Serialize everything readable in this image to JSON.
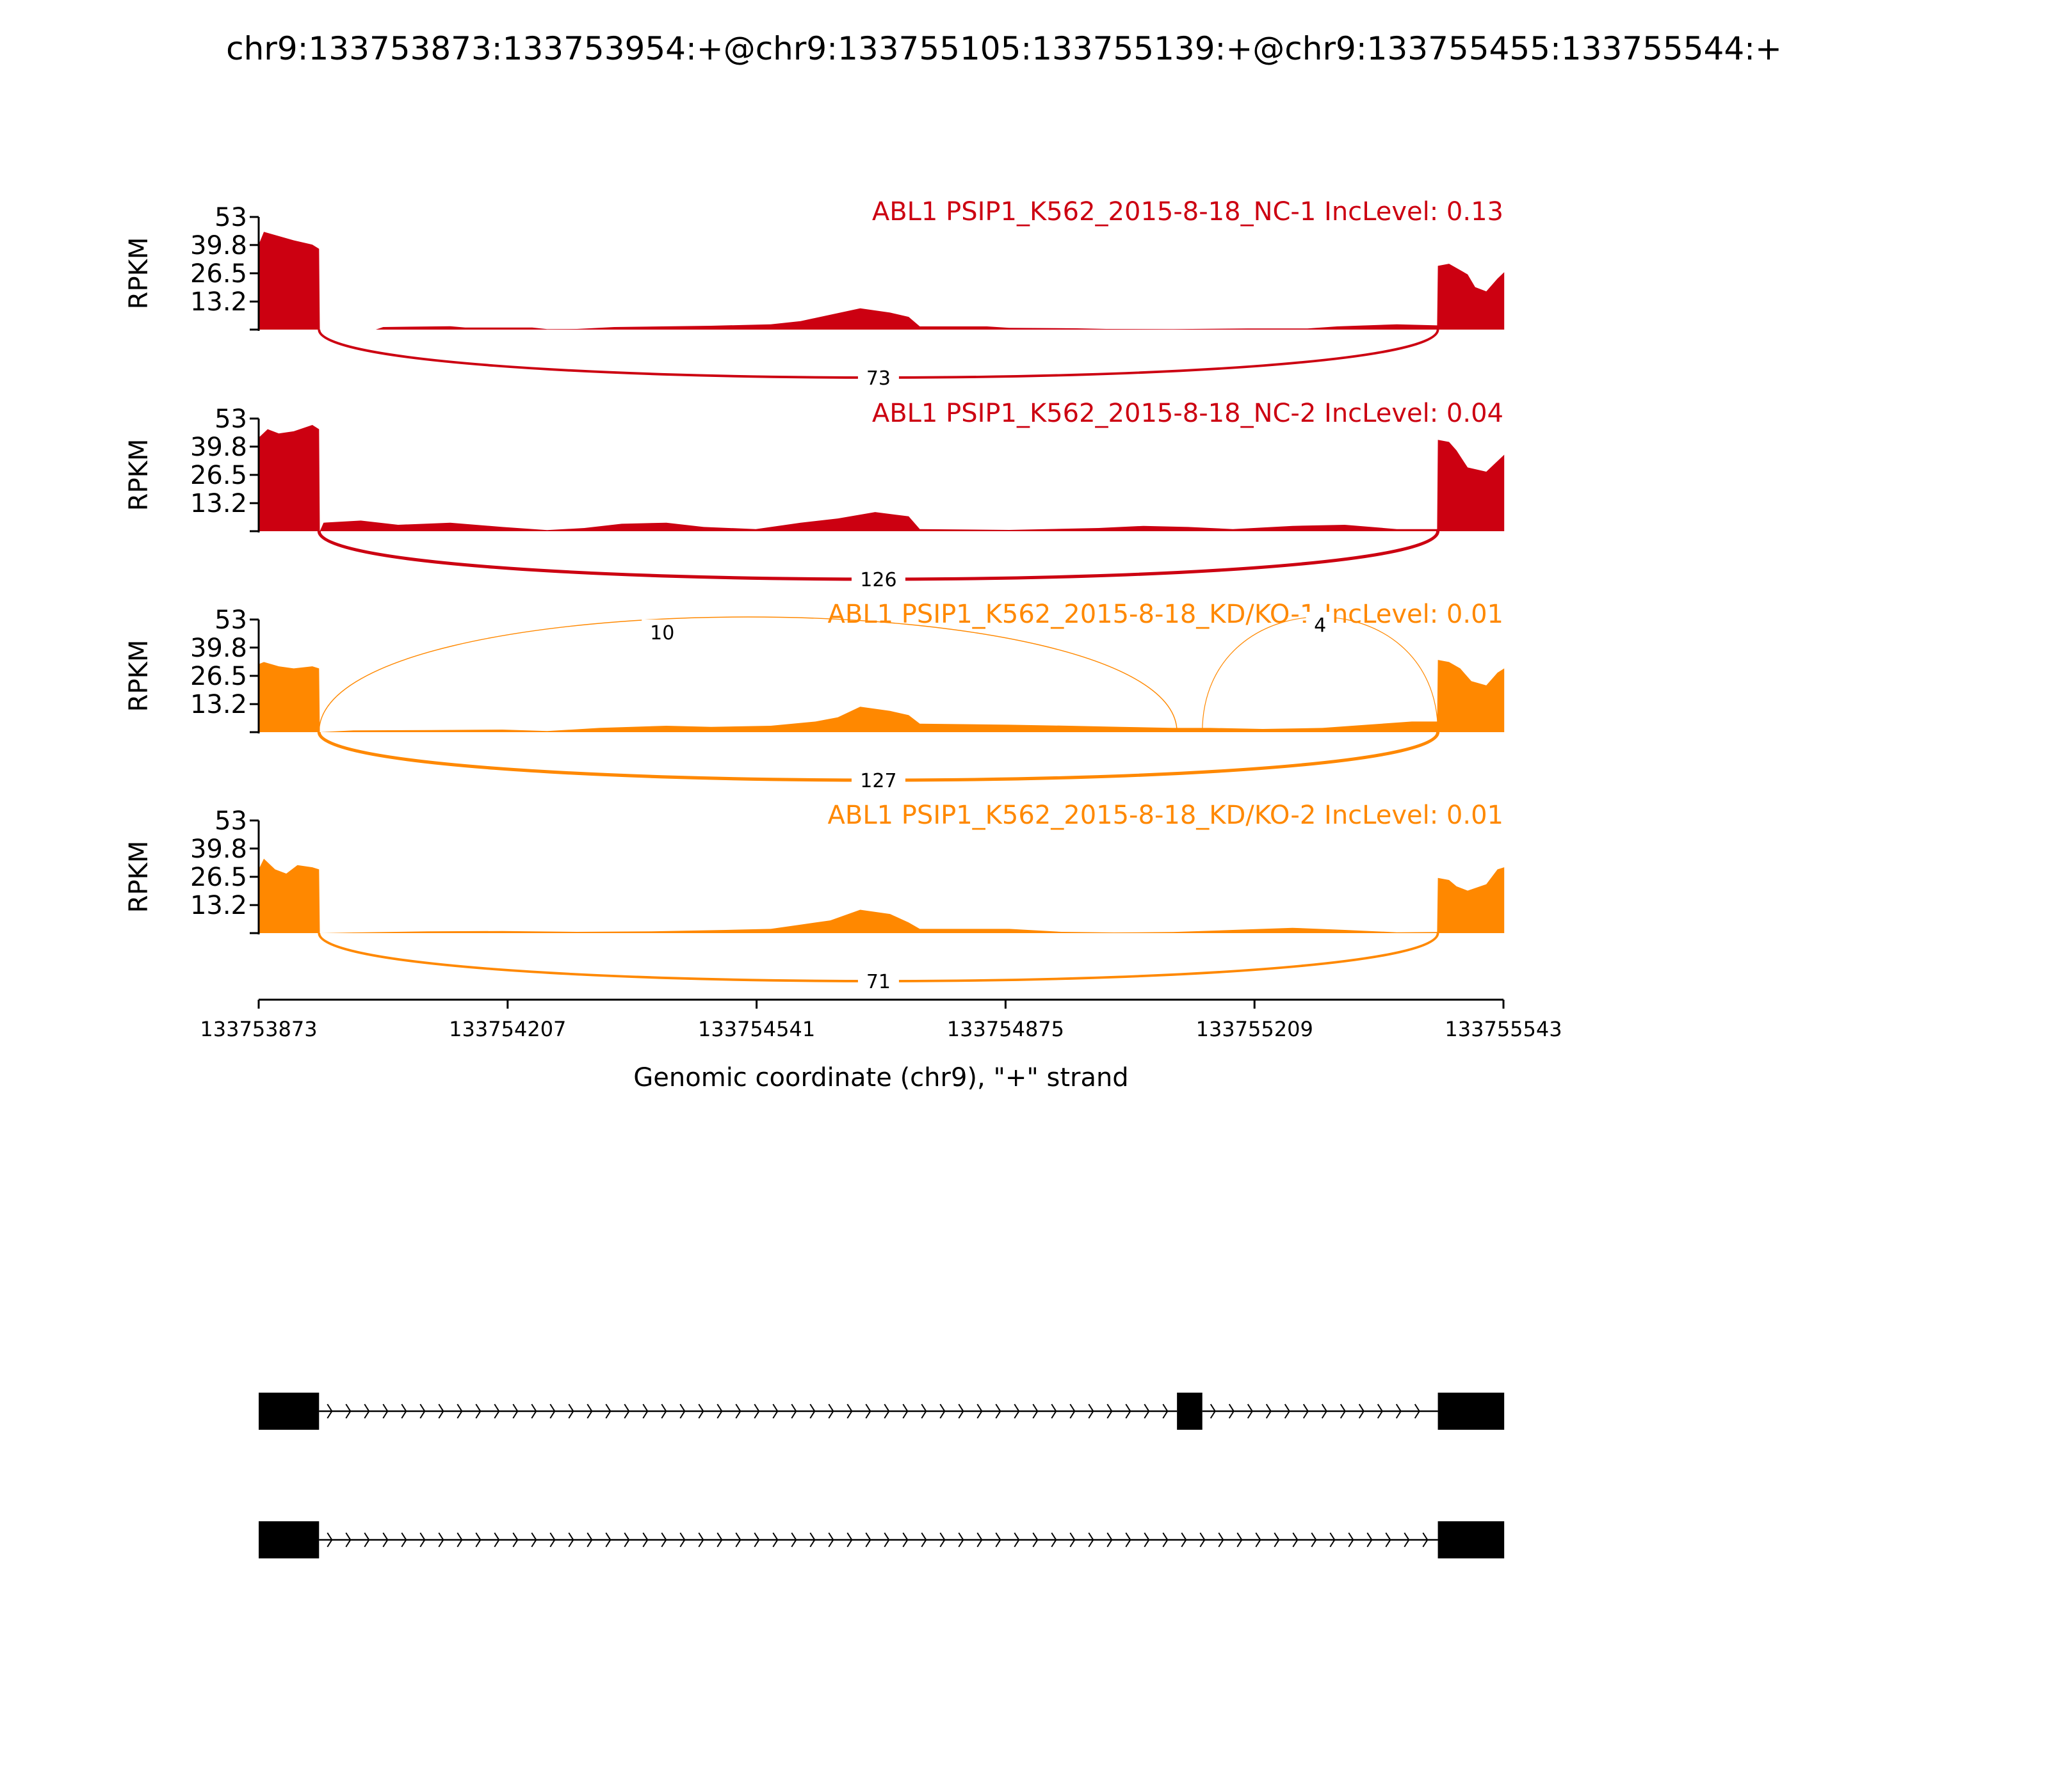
{
  "chart_data": {
    "type": "sashimi",
    "title": "chr9:133753873:133753954:+@chr9:133755105:133755139:+@chr9:133755455:133755544:+",
    "xlabel": "Genomic coordinate (chr9), \"+\" strand",
    "ylabel": "RPKM",
    "xlim": [
      133753873,
      133755543
    ],
    "x_ticks": [
      "133753873",
      "133754207",
      "133754541",
      "133754875",
      "133755209",
      "133755543"
    ],
    "ylim": [
      0,
      53
    ],
    "y_ticks": [
      "13.2",
      "26.5",
      "39.8",
      "53"
    ],
    "exons": [
      {
        "start": 133753873,
        "end": 133753954
      },
      {
        "start": 133755105,
        "end": 133755139
      },
      {
        "start": 133755455,
        "end": 133755544
      }
    ],
    "series": [
      {
        "name": "ABL1 PSIP1_K562_2015-8-18_NC-1 IncLevel: 0.13",
        "color": "#cc0011",
        "coverage": [
          [
            133753873,
            40
          ],
          [
            133753880,
            46
          ],
          [
            133753900,
            44
          ],
          [
            133753920,
            42
          ],
          [
            133753945,
            40
          ],
          [
            133753954,
            38
          ],
          [
            133753955,
            0
          ],
          [
            133754030,
            0
          ],
          [
            133754040,
            1.2
          ],
          [
            133754130,
            1.6
          ],
          [
            133754150,
            1
          ],
          [
            133754240,
            1
          ],
          [
            133754260,
            0.2
          ],
          [
            133754300,
            0.3
          ],
          [
            133754350,
            1.2
          ],
          [
            133754480,
            1.8
          ],
          [
            133754560,
            2.5
          ],
          [
            133754600,
            4
          ],
          [
            133754640,
            7
          ],
          [
            133754680,
            10
          ],
          [
            133754720,
            8
          ],
          [
            133754745,
            6
          ],
          [
            133754760,
            1.5
          ],
          [
            133754850,
            1.5
          ],
          [
            133754880,
            0.8
          ],
          [
            133754970,
            0.6
          ],
          [
            133755010,
            0.3
          ],
          [
            133755100,
            0.2
          ],
          [
            133755200,
            0.5
          ],
          [
            133755280,
            0.5
          ],
          [
            133755320,
            1.5
          ],
          [
            133755400,
            2.5
          ],
          [
            133755454,
            2
          ],
          [
            133755455,
            30
          ],
          [
            133755470,
            31
          ],
          [
            133755480,
            29
          ],
          [
            133755495,
            26
          ],
          [
            133755505,
            20
          ],
          [
            133755520,
            18
          ],
          [
            133755535,
            24
          ],
          [
            133755544,
            27
          ]
        ],
        "junctions": [
          {
            "from": 133753954,
            "to": 133755455,
            "count": "73",
            "side": "below"
          }
        ]
      },
      {
        "name": "ABL1 PSIP1_K562_2015-8-18_NC-2 IncLevel: 0.04",
        "color": "#cc0011",
        "coverage": [
          [
            133753873,
            44
          ],
          [
            133753885,
            48
          ],
          [
            133753900,
            46
          ],
          [
            133753920,
            47
          ],
          [
            133753945,
            50
          ],
          [
            133753954,
            48
          ],
          [
            133753955,
            0
          ],
          [
            133753960,
            4
          ],
          [
            133754010,
            5
          ],
          [
            133754060,
            3
          ],
          [
            133754130,
            4
          ],
          [
            133754200,
            2
          ],
          [
            133754260,
            0.5
          ],
          [
            133754310,
            1.5
          ],
          [
            133754360,
            3.5
          ],
          [
            133754420,
            4
          ],
          [
            133754470,
            2
          ],
          [
            133754540,
            1
          ],
          [
            133754600,
            4
          ],
          [
            133754650,
            6
          ],
          [
            133754700,
            9
          ],
          [
            133754745,
            7
          ],
          [
            133754760,
            1
          ],
          [
            133754880,
            0.6
          ],
          [
            133755000,
            1.5
          ],
          [
            133755060,
            2.5
          ],
          [
            133755120,
            2
          ],
          [
            133755180,
            1
          ],
          [
            133755260,
            2.5
          ],
          [
            133755330,
            3
          ],
          [
            133755400,
            1
          ],
          [
            133755454,
            1
          ],
          [
            133755455,
            43
          ],
          [
            133755470,
            42
          ],
          [
            133755480,
            38
          ],
          [
            133755495,
            30
          ],
          [
            133755520,
            28
          ],
          [
            133755535,
            33
          ],
          [
            133755544,
            36
          ]
        ],
        "junctions": [
          {
            "from": 133753954,
            "to": 133755455,
            "count": "126",
            "side": "below"
          }
        ]
      },
      {
        "name": "ABL1 PSIP1_K562_2015-8-18_KD/KO-1 IncLevel: 0.01",
        "color": "#ff8800",
        "coverage": [
          [
            133753873,
            32
          ],
          [
            133753880,
            33
          ],
          [
            133753900,
            31
          ],
          [
            133753920,
            30
          ],
          [
            133753945,
            31
          ],
          [
            133753954,
            30
          ],
          [
            133753955,
            0
          ],
          [
            133754000,
            0.8
          ],
          [
            133754100,
            1
          ],
          [
            133754200,
            1.2
          ],
          [
            133754260,
            0.5
          ],
          [
            133754330,
            2
          ],
          [
            133754420,
            3
          ],
          [
            133754480,
            2.5
          ],
          [
            133754560,
            3
          ],
          [
            133754620,
            5
          ],
          [
            133754650,
            7
          ],
          [
            133754680,
            12
          ],
          [
            133754720,
            10
          ],
          [
            133754745,
            8
          ],
          [
            133754760,
            4
          ],
          [
            133754880,
            3.5
          ],
          [
            133754960,
            3
          ],
          [
            133755030,
            2.5
          ],
          [
            133755100,
            2
          ],
          [
            133755150,
            2
          ],
          [
            133755220,
            1.5
          ],
          [
            133755300,
            2
          ],
          [
            133755360,
            3.5
          ],
          [
            133755420,
            5
          ],
          [
            133755454,
            5
          ],
          [
            133755455,
            34
          ],
          [
            133755470,
            33
          ],
          [
            133755485,
            30
          ],
          [
            133755500,
            24
          ],
          [
            133755520,
            22
          ],
          [
            133755535,
            28
          ],
          [
            133755544,
            30
          ]
        ],
        "junctions": [
          {
            "from": 133753954,
            "to": 133755105,
            "count": "10",
            "side": "above"
          },
          {
            "from": 133755139,
            "to": 133755455,
            "count": "4",
            "side": "above"
          },
          {
            "from": 133753954,
            "to": 133755455,
            "count": "127",
            "side": "below"
          }
        ]
      },
      {
        "name": "ABL1 PSIP1_K562_2015-8-18_KD/KO-2 IncLevel: 0.01",
        "color": "#ff8800",
        "coverage": [
          [
            133753873,
            30
          ],
          [
            133753880,
            35
          ],
          [
            133753895,
            30
          ],
          [
            133753910,
            28
          ],
          [
            133753925,
            32
          ],
          [
            133753945,
            31
          ],
          [
            133753954,
            30
          ],
          [
            133753955,
            0
          ],
          [
            133754000,
            0.3
          ],
          [
            133754100,
            0.8
          ],
          [
            133754200,
            1
          ],
          [
            133754300,
            0.6
          ],
          [
            133754400,
            0.8
          ],
          [
            133754500,
            1.5
          ],
          [
            133754560,
            2
          ],
          [
            133754600,
            4
          ],
          [
            133754640,
            6
          ],
          [
            133754680,
            11
          ],
          [
            133754720,
            9
          ],
          [
            133754745,
            5
          ],
          [
            133754760,
            2
          ],
          [
            133754880,
            2
          ],
          [
            133754950,
            0.6
          ],
          [
            133755020,
            0.3
          ],
          [
            133755100,
            0.5
          ],
          [
            133755180,
            1.5
          ],
          [
            133755260,
            2.5
          ],
          [
            133755330,
            1.5
          ],
          [
            133755400,
            0.4
          ],
          [
            133755454,
            0.5
          ],
          [
            133755455,
            26
          ],
          [
            133755470,
            25
          ],
          [
            133755480,
            22
          ],
          [
            133755495,
            20
          ],
          [
            133755520,
            23
          ],
          [
            133755535,
            30
          ],
          [
            133755544,
            31
          ]
        ],
        "junctions": [
          {
            "from": 133753954,
            "to": 133755455,
            "count": "71",
            "side": "below"
          }
        ]
      }
    ],
    "isoforms": [
      {
        "exons": [
          0,
          1,
          2
        ]
      },
      {
        "exons": [
          0,
          2
        ]
      }
    ]
  }
}
